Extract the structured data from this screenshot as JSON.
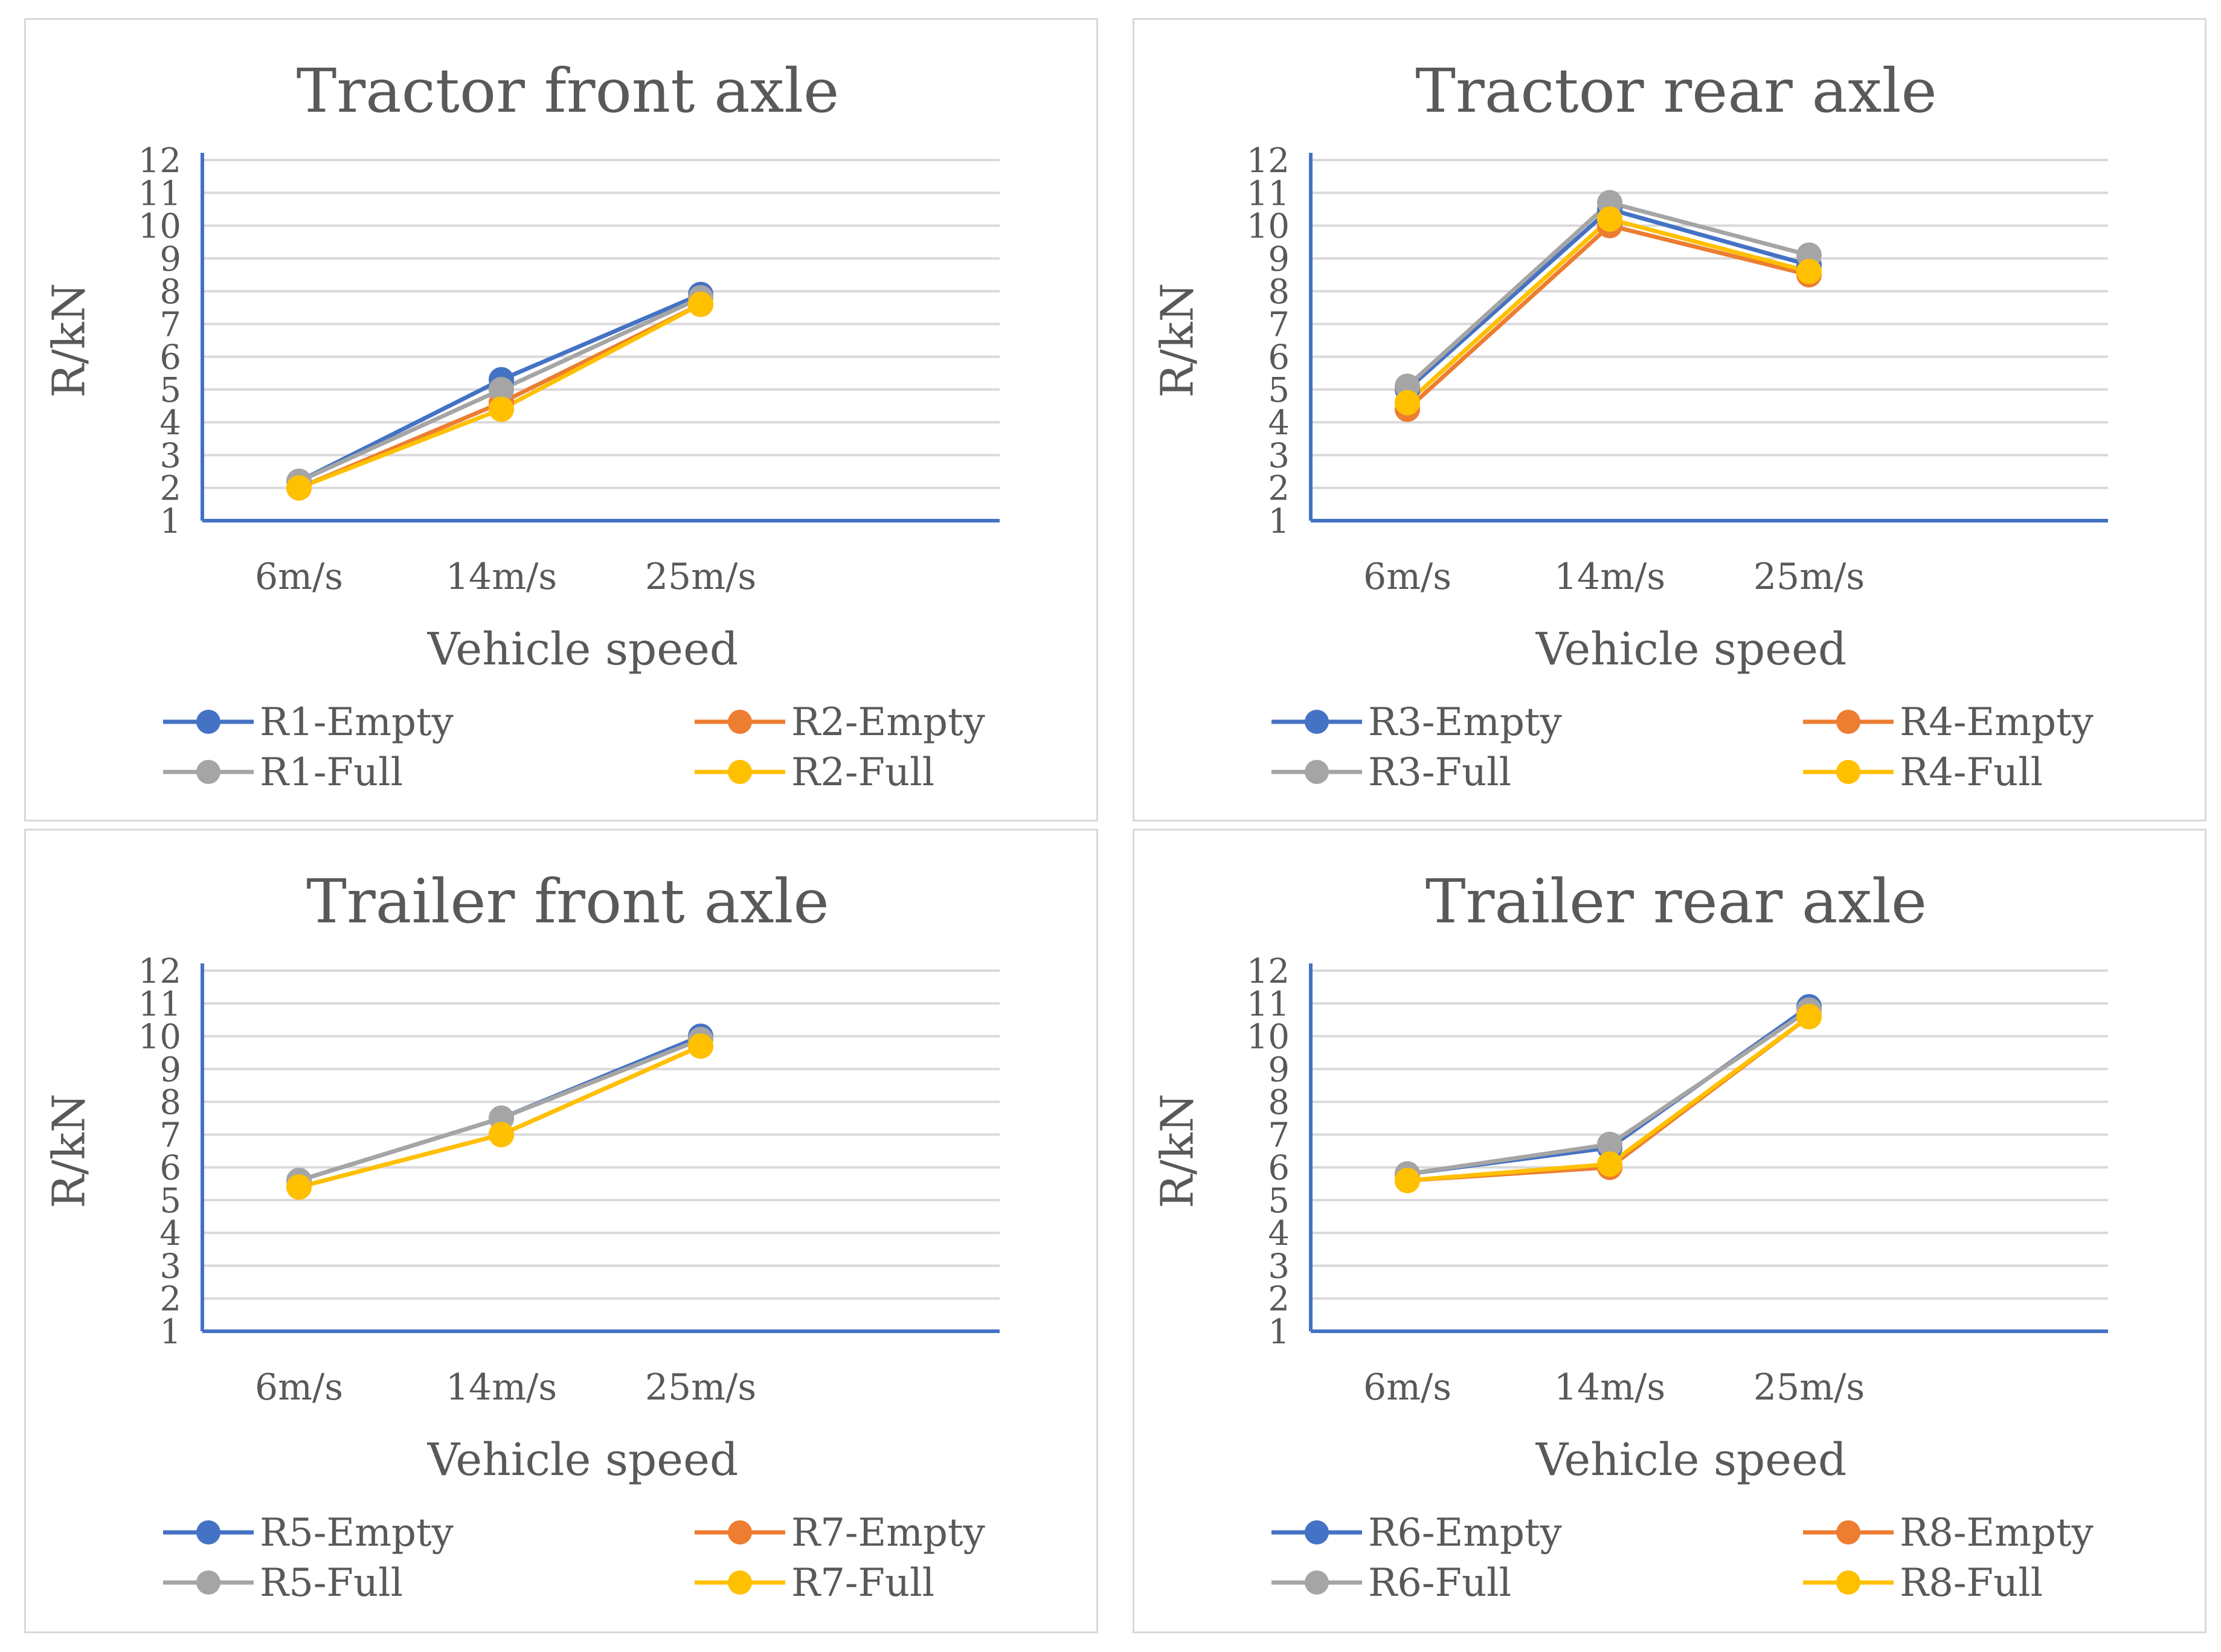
{
  "chart_data": [
    {
      "type": "line",
      "title": "Tractor front axle",
      "xlabel": "Vehicle speed",
      "ylabel": "R/kN",
      "categories": [
        "6m/s",
        "14m/s",
        "25m/s"
      ],
      "ylim": [
        1,
        12
      ],
      "yticks": [
        "1",
        "2",
        "3",
        "4",
        "5",
        "6",
        "7",
        "8",
        "9",
        "10",
        "11",
        "12"
      ],
      "grid": true,
      "legend_position": "bottom",
      "series": [
        {
          "name": "R1-Empty",
          "color": "#4472C4",
          "values": [
            2.2,
            5.3,
            7.9
          ]
        },
        {
          "name": "R2-Empty",
          "color": "#ED7D31",
          "values": [
            2.0,
            4.6,
            7.6
          ]
        },
        {
          "name": "R1-Full",
          "color": "#A5A5A5",
          "values": [
            2.2,
            5.0,
            7.8
          ]
        },
        {
          "name": "R2-Full",
          "color": "#FFC000",
          "values": [
            2.0,
            4.4,
            7.6
          ]
        }
      ]
    },
    {
      "type": "line",
      "title": "Tractor rear axle",
      "xlabel": "Vehicle speed",
      "ylabel": "R/kN",
      "categories": [
        "6m/s",
        "14m/s",
        "25m/s"
      ],
      "ylim": [
        1,
        12
      ],
      "yticks": [
        "1",
        "2",
        "3",
        "4",
        "5",
        "6",
        "7",
        "8",
        "9",
        "10",
        "11",
        "12"
      ],
      "grid": true,
      "legend_position": "bottom",
      "series": [
        {
          "name": "R3-Empty",
          "color": "#4472C4",
          "values": [
            5.0,
            10.5,
            8.8
          ]
        },
        {
          "name": "R4-Empty",
          "color": "#ED7D31",
          "values": [
            4.4,
            10.0,
            8.5
          ]
        },
        {
          "name": "R3-Full",
          "color": "#A5A5A5",
          "values": [
            5.1,
            10.7,
            9.1
          ]
        },
        {
          "name": "R4-Full",
          "color": "#FFC000",
          "values": [
            4.6,
            10.2,
            8.6
          ]
        }
      ]
    },
    {
      "type": "line",
      "title": "Trailer front axle",
      "xlabel": "Vehicle speed",
      "ylabel": "R/kN",
      "categories": [
        "6m/s",
        "14m/s",
        "25m/s"
      ],
      "ylim": [
        1,
        12
      ],
      "yticks": [
        "1",
        "2",
        "3",
        "4",
        "5",
        "6",
        "7",
        "8",
        "9",
        "10",
        "11",
        "12"
      ],
      "grid": true,
      "legend_position": "bottom",
      "series": [
        {
          "name": "R5-Empty",
          "color": "#4472C4",
          "values": [
            5.6,
            7.5,
            10.0
          ]
        },
        {
          "name": "R7-Empty",
          "color": "#ED7D31",
          "values": [
            5.4,
            7.0,
            9.7
          ]
        },
        {
          "name": "R5-Full",
          "color": "#A5A5A5",
          "values": [
            5.6,
            7.5,
            9.9
          ]
        },
        {
          "name": "R7-Full",
          "color": "#FFC000",
          "values": [
            5.4,
            7.0,
            9.7
          ]
        }
      ]
    },
    {
      "type": "line",
      "title": "Trailer rear axle",
      "xlabel": "Vehicle speed",
      "ylabel": "R/kN",
      "categories": [
        "6m/s",
        "14m/s",
        "25m/s"
      ],
      "ylim": [
        1,
        12
      ],
      "yticks": [
        "1",
        "2",
        "3",
        "4",
        "5",
        "6",
        "7",
        "8",
        "9",
        "10",
        "11",
        "12"
      ],
      "grid": true,
      "legend_position": "bottom",
      "series": [
        {
          "name": "R6-Empty",
          "color": "#4472C4",
          "values": [
            5.8,
            6.6,
            10.9
          ]
        },
        {
          "name": "R8-Empty",
          "color": "#ED7D31",
          "values": [
            5.6,
            6.0,
            10.6
          ]
        },
        {
          "name": "R6-Full",
          "color": "#A5A5A5",
          "values": [
            5.8,
            6.7,
            10.8
          ]
        },
        {
          "name": "R8-Full",
          "color": "#FFC000",
          "values": [
            5.6,
            6.1,
            10.6
          ]
        }
      ]
    }
  ]
}
